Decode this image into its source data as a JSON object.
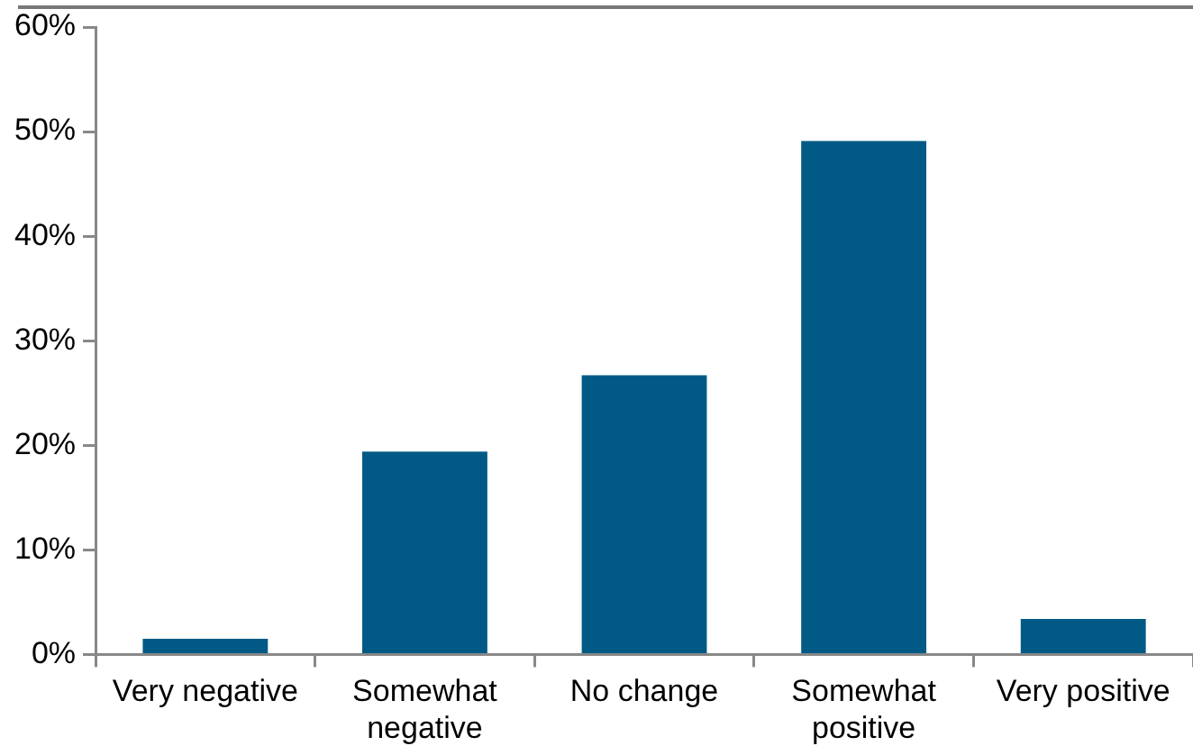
{
  "chart_data": {
    "type": "bar",
    "categories": [
      "Very negative",
      "Somewhat negative",
      "No change",
      "Somewhat positive",
      "Very positive"
    ],
    "values": [
      1.5,
      19.4,
      26.7,
      49.1,
      3.4
    ],
    "color": "#015a86",
    "ylim": [
      0,
      60
    ],
    "yticks": [
      {
        "value": 0,
        "label": "0%"
      },
      {
        "value": 10,
        "label": "10%"
      },
      {
        "value": 20,
        "label": "20%"
      },
      {
        "value": 30,
        "label": "30%"
      },
      {
        "value": 40,
        "label": "40%"
      },
      {
        "value": 50,
        "label": "50%"
      },
      {
        "value": 60,
        "label": "60%"
      }
    ],
    "grid": false,
    "legend": false
  }
}
